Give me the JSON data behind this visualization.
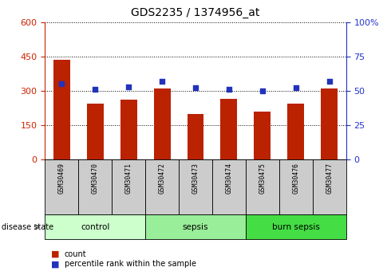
{
  "title": "GDS2235 / 1374956_at",
  "samples": [
    "GSM30469",
    "GSM30470",
    "GSM30471",
    "GSM30472",
    "GSM30473",
    "GSM30474",
    "GSM30475",
    "GSM30476",
    "GSM30477"
  ],
  "counts": [
    435,
    245,
    260,
    310,
    200,
    265,
    210,
    245,
    310
  ],
  "percentiles": [
    55,
    51,
    53,
    57,
    52,
    51,
    50,
    52,
    57
  ],
  "groups": [
    {
      "label": "control",
      "indices": [
        0,
        1,
        2
      ],
      "color": "#ccffcc"
    },
    {
      "label": "sepsis",
      "indices": [
        3,
        4,
        5
      ],
      "color": "#99ee99"
    },
    {
      "label": "burn sepsis",
      "indices": [
        6,
        7,
        8
      ],
      "color": "#44dd44"
    }
  ],
  "ylim_left": [
    0,
    600
  ],
  "yticks_left": [
    0,
    150,
    300,
    450,
    600
  ],
  "ylim_right": [
    0,
    100
  ],
  "yticks_right": [
    0,
    25,
    50,
    75,
    100
  ],
  "bar_color": "#bb2200",
  "dot_color": "#2233bb",
  "bar_width": 0.5,
  "left_axis_color": "#cc2200",
  "right_axis_color": "#2233cc",
  "legend_count_label": "count",
  "legend_pct_label": "percentile rank within the sample",
  "disease_state_label": "disease state",
  "sample_row_color": "#cccccc",
  "group_row_colors": [
    "#ccffcc",
    "#99ee99",
    "#44dd44"
  ]
}
